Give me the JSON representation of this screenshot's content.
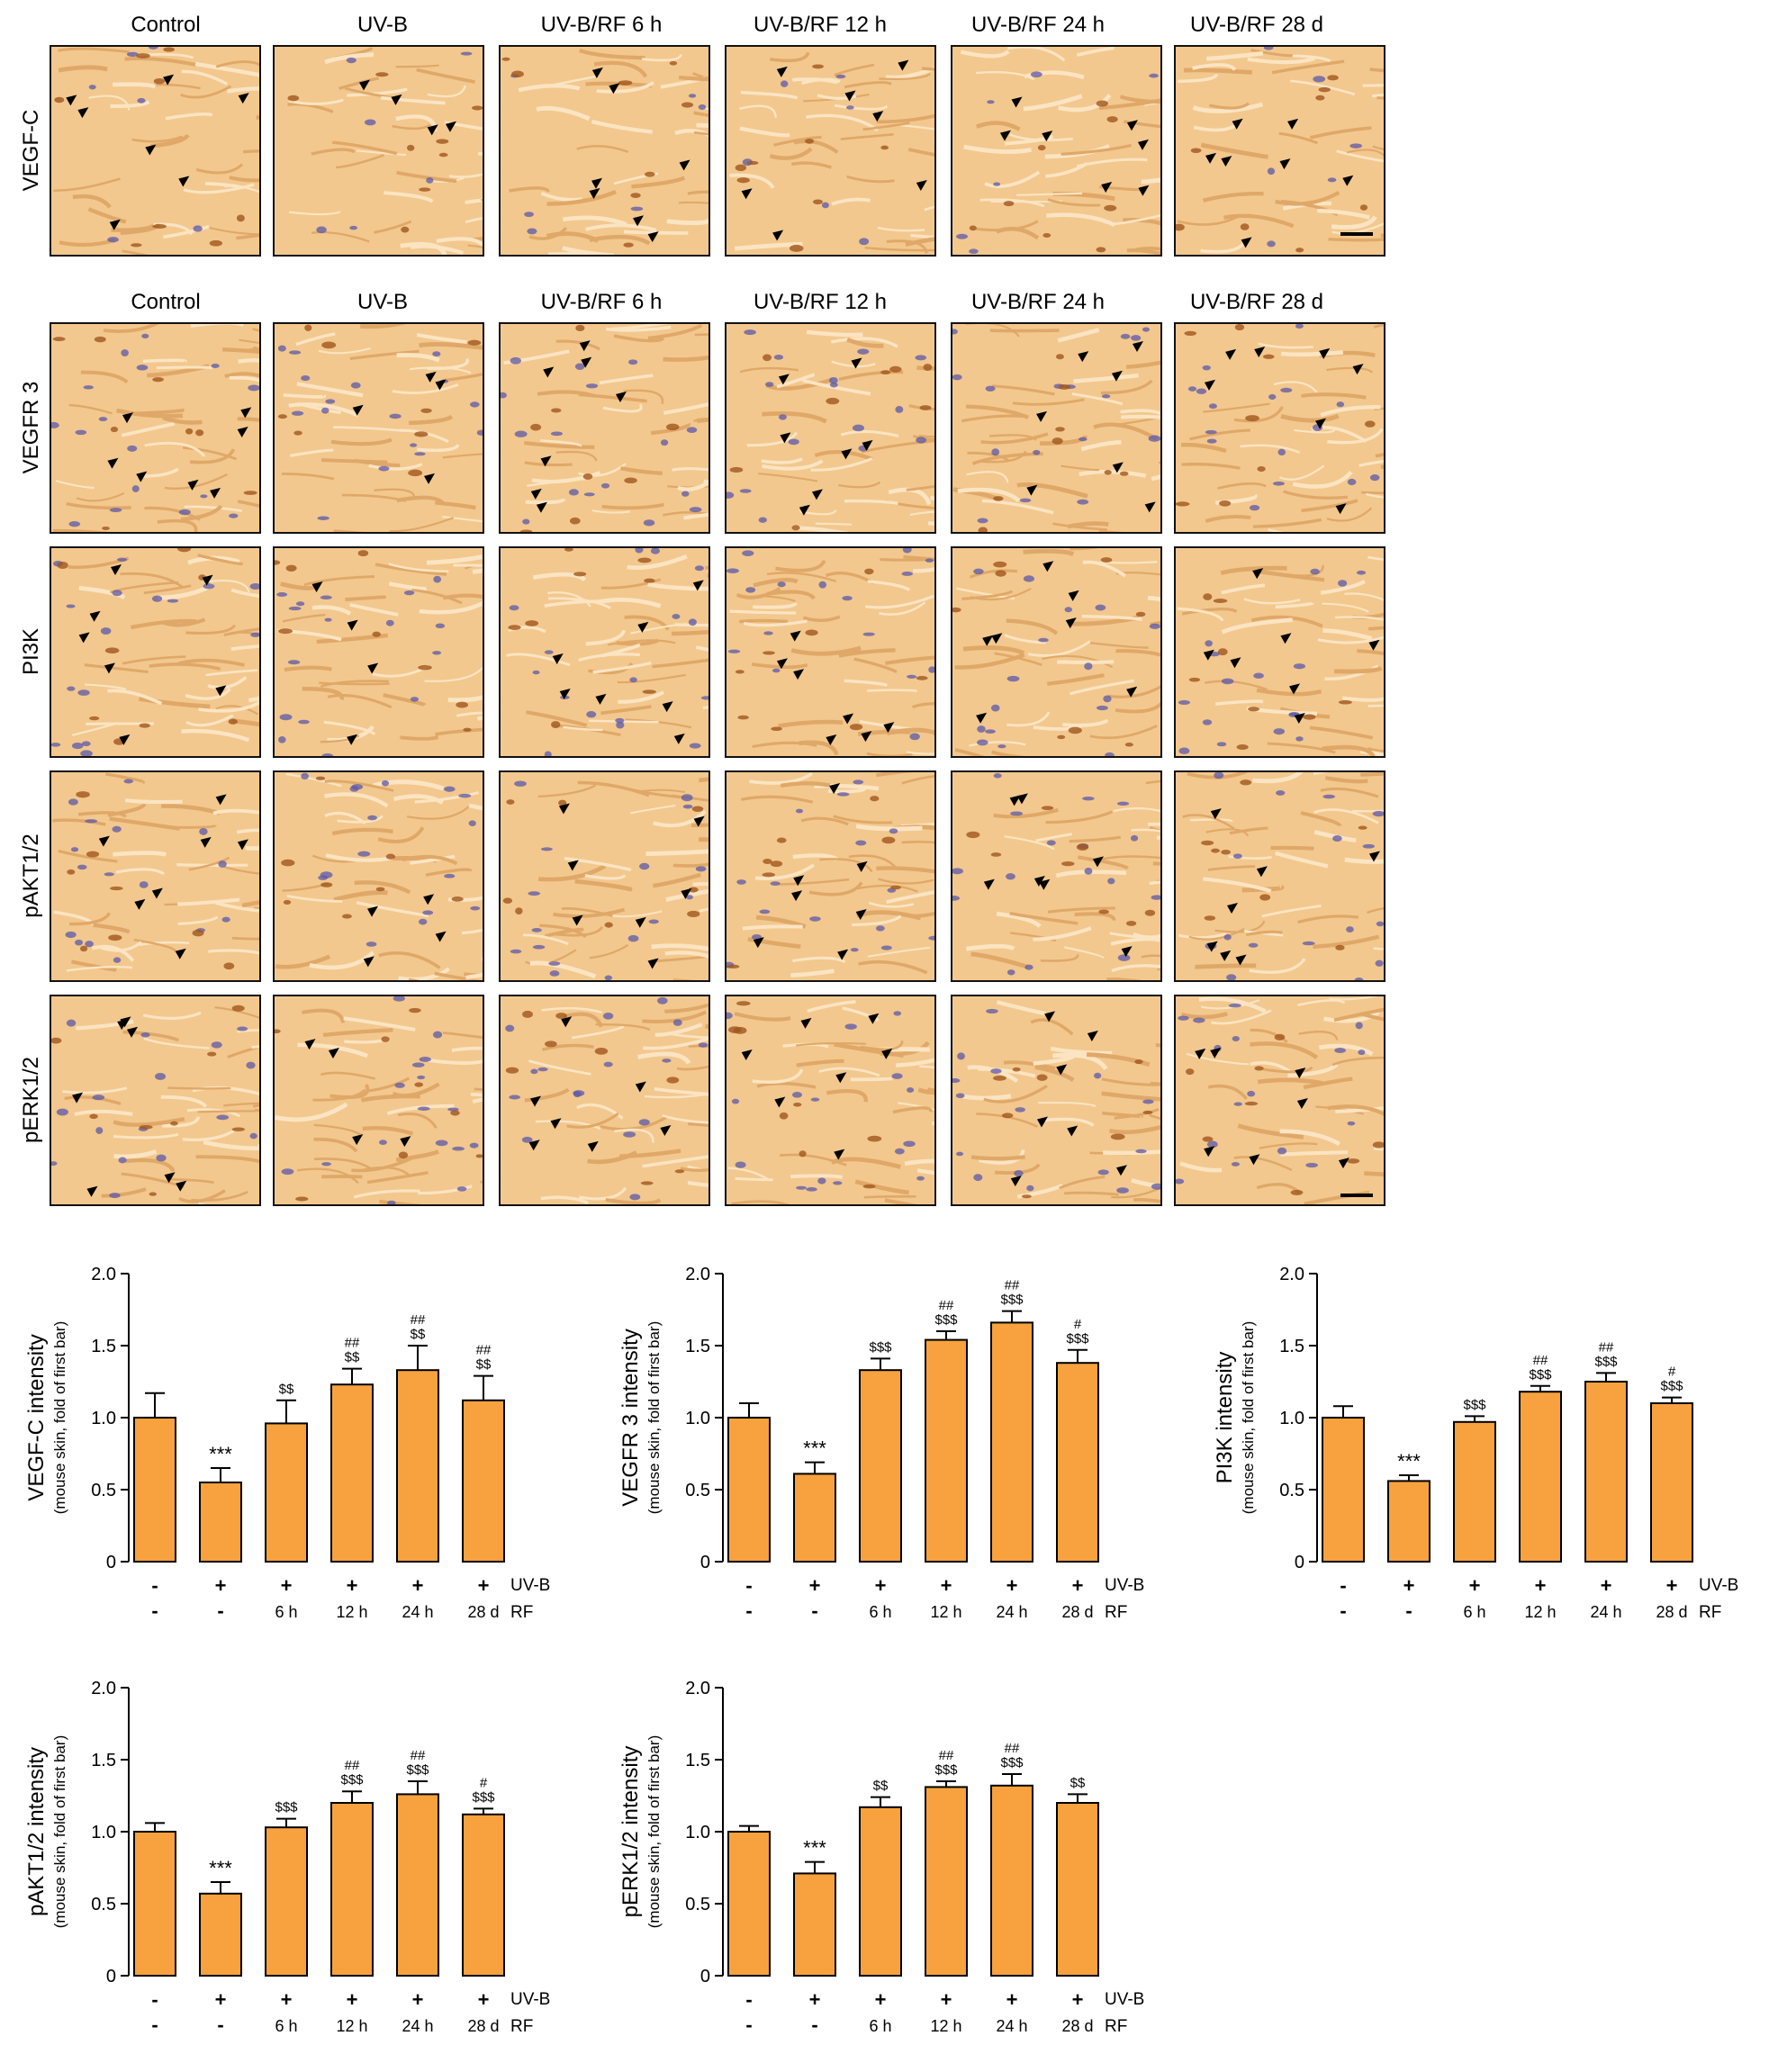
{
  "micrographs": {
    "top": {
      "columns": [
        "Control",
        "UV-B",
        "UV-B/RF 6 h",
        "UV-B/RF 12 h",
        "UV-B/RF 24 h",
        "UV-B/RF 28 d"
      ],
      "rows": [
        "VEGF-C"
      ]
    },
    "bottom": {
      "columns": [
        "Control",
        "UV-B",
        "UV-B/RF 6 h",
        "UV-B/RF 12 h",
        "UV-B/RF 24 h",
        "UV-B/RF 28 d"
      ],
      "rows": [
        "VEGFR 3",
        "PI3K",
        "pAKT1/2",
        "pERK1/2"
      ]
    },
    "colors": {
      "tissue": "#f2c88e",
      "stain": "#a0561e",
      "nuclei": "#5b58a8",
      "arrowhead": "#000000"
    }
  },
  "chart_data": [
    {
      "type": "bar",
      "ylabel": "VEGF-C intensity",
      "ylabel_sub": "(mouse skin, fold of first bar)",
      "ylim": [
        0,
        2.0
      ],
      "yticks": [
        "0",
        "0.5",
        "1.0",
        "1.5",
        "2.0"
      ],
      "uvb_row": [
        "-",
        "+",
        "+",
        "+",
        "+",
        "+"
      ],
      "rf_row": [
        "-",
        "-",
        "6 h",
        "12 h",
        "24 h",
        "28 d"
      ],
      "uvb_label": "UV-B",
      "rf_label": "RF",
      "values": [
        1.0,
        0.55,
        0.96,
        1.23,
        1.33,
        1.12
      ],
      "errors": [
        0.17,
        0.1,
        0.16,
        0.11,
        0.17,
        0.17
      ],
      "annotations": [
        [
          "",
          ""
        ],
        [
          "***",
          ""
        ],
        [
          "$$",
          ""
        ],
        [
          "$$",
          "##"
        ],
        [
          "$$",
          "##"
        ],
        [
          "$$",
          "##"
        ]
      ],
      "bar_color": "#f7a23e"
    },
    {
      "type": "bar",
      "ylabel": "VEGFR 3 intensity",
      "ylabel_sub": "(mouse skin, fold of first bar)",
      "ylim": [
        0,
        2.0
      ],
      "yticks": [
        "0",
        "0.5",
        "1.0",
        "1.5",
        "2.0"
      ],
      "uvb_row": [
        "-",
        "+",
        "+",
        "+",
        "+",
        "+"
      ],
      "rf_row": [
        "-",
        "-",
        "6 h",
        "12 h",
        "24 h",
        "28 d"
      ],
      "uvb_label": "UV-B",
      "rf_label": "RF",
      "values": [
        1.0,
        0.61,
        1.33,
        1.54,
        1.66,
        1.38
      ],
      "errors": [
        0.1,
        0.08,
        0.08,
        0.06,
        0.08,
        0.09
      ],
      "annotations": [
        [
          "",
          ""
        ],
        [
          "***",
          ""
        ],
        [
          "$$$",
          ""
        ],
        [
          "$$$",
          "##"
        ],
        [
          "$$$",
          "##"
        ],
        [
          "$$$",
          "#"
        ]
      ],
      "bar_color": "#f7a23e"
    },
    {
      "type": "bar",
      "ylabel": "PI3K intensity",
      "ylabel_sub": "(mouse skin, fold of first bar)",
      "ylim": [
        0,
        2.0
      ],
      "yticks": [
        "0",
        "0.5",
        "1.0",
        "1.5",
        "2.0"
      ],
      "uvb_row": [
        "-",
        "+",
        "+",
        "+",
        "+",
        "+"
      ],
      "rf_row": [
        "-",
        "-",
        "6 h",
        "12 h",
        "24 h",
        "28 d"
      ],
      "uvb_label": "UV-B",
      "rf_label": "RF",
      "values": [
        1.0,
        0.56,
        0.97,
        1.18,
        1.25,
        1.1
      ],
      "errors": [
        0.08,
        0.04,
        0.04,
        0.04,
        0.06,
        0.04
      ],
      "annotations": [
        [
          "",
          ""
        ],
        [
          "***",
          ""
        ],
        [
          "$$$",
          ""
        ],
        [
          "$$$",
          "##"
        ],
        [
          "$$$",
          "##"
        ],
        [
          "$$$",
          "#"
        ]
      ],
      "bar_color": "#f7a23e"
    },
    {
      "type": "bar",
      "ylabel": "pAKT1/2 intensity",
      "ylabel_sub": "(mouse skin, fold of first bar)",
      "ylim": [
        0,
        2.0
      ],
      "yticks": [
        "0",
        "0.5",
        "1.0",
        "1.5",
        "2.0"
      ],
      "uvb_row": [
        "-",
        "+",
        "+",
        "+",
        "+",
        "+"
      ],
      "rf_row": [
        "-",
        "-",
        "6 h",
        "12 h",
        "24 h",
        "28 d"
      ],
      "uvb_label": "UV-B",
      "rf_label": "RF",
      "values": [
        1.0,
        0.57,
        1.03,
        1.2,
        1.26,
        1.12
      ],
      "errors": [
        0.06,
        0.08,
        0.06,
        0.08,
        0.09,
        0.04
      ],
      "annotations": [
        [
          "",
          ""
        ],
        [
          "***",
          ""
        ],
        [
          "$$$",
          ""
        ],
        [
          "$$$",
          "##"
        ],
        [
          "$$$",
          "##"
        ],
        [
          "$$$",
          "#"
        ]
      ],
      "bar_color": "#f7a23e"
    },
    {
      "type": "bar",
      "ylabel": "pERK1/2 intensity",
      "ylabel_sub": "(mouse skin, fold of first bar)",
      "ylim": [
        0,
        2.0
      ],
      "yticks": [
        "0",
        "0.5",
        "1.0",
        "1.5",
        "2.0"
      ],
      "uvb_row": [
        "-",
        "+",
        "+",
        "+",
        "+",
        "+"
      ],
      "rf_row": [
        "-",
        "-",
        "6 h",
        "12 h",
        "24 h",
        "28 d"
      ],
      "uvb_label": "UV-B",
      "rf_label": "RF",
      "values": [
        1.0,
        0.71,
        1.17,
        1.31,
        1.32,
        1.2
      ],
      "errors": [
        0.04,
        0.08,
        0.07,
        0.04,
        0.08,
        0.06
      ],
      "annotations": [
        [
          "",
          ""
        ],
        [
          "***",
          ""
        ],
        [
          "$$",
          ""
        ],
        [
          "$$$",
          "##"
        ],
        [
          "$$$",
          "##"
        ],
        [
          "$$",
          ""
        ]
      ],
      "bar_color": "#f7a23e"
    }
  ]
}
